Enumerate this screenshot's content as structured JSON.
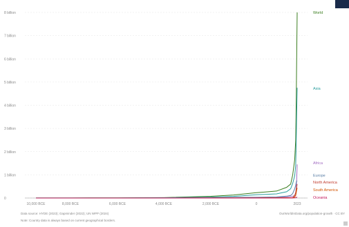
{
  "chart_data": {
    "type": "line",
    "title": "",
    "xlabel": "",
    "ylabel": "",
    "x_ticks": [
      "10,000 BCE",
      "8,000 BCE",
      "6,000 BCE",
      "4,000 BCE",
      "2,000 BCE",
      "0",
      "2023"
    ],
    "y_ticks": [
      "0",
      "1 billion",
      "2 billion",
      "3 billion",
      "4 billion",
      "5 billion",
      "6 billion",
      "7 billion",
      "8 billion"
    ],
    "ylim": [
      0,
      8000000000
    ],
    "xlim": [
      -10000,
      2023
    ],
    "grid": true,
    "x": [
      -10000,
      -8000,
      -6000,
      -4000,
      -2000,
      -1000,
      0,
      1000,
      1500,
      1700,
      1800,
      1900,
      1950,
      1980,
      2000,
      2023
    ],
    "series": [
      {
        "name": "World",
        "color": "#3a7d1e",
        "values": [
          4400000,
          5000000,
          7000000,
          18000000,
          73000000,
          130000000,
          230000000,
          300000000,
          460000000,
          600000000,
          990000000,
          1650000000,
          2500000000,
          4450000000,
          6150000000,
          8000000000
        ]
      },
      {
        "name": "Asia",
        "color": "#2a9d9d",
        "values": [
          2000000,
          2500000,
          3500000,
          9000000,
          40000000,
          70000000,
          140000000,
          180000000,
          270000000,
          400000000,
          630000000,
          950000000,
          1400000000,
          2650000000,
          3700000000,
          4750000000
        ]
      },
      {
        "name": "Africa",
        "color": "#a26dc2",
        "values": [
          500000,
          600000,
          900000,
          2500000,
          10000000,
          15000000,
          25000000,
          35000000,
          55000000,
          70000000,
          80000000,
          110000000,
          230000000,
          480000000,
          820000000,
          1450000000
        ]
      },
      {
        "name": "Europe",
        "color": "#5b7fa6",
        "values": [
          700000,
          800000,
          1000000,
          3000000,
          12000000,
          25000000,
          35000000,
          45000000,
          80000000,
          110000000,
          190000000,
          400000000,
          550000000,
          690000000,
          730000000,
          745000000
        ]
      },
      {
        "name": "North America",
        "color": "#c0392b",
        "values": [
          200000,
          250000,
          300000,
          600000,
          2000000,
          3000000,
          5000000,
          8000000,
          15000000,
          10000000,
          15000000,
          110000000,
          230000000,
          370000000,
          490000000,
          600000000
        ]
      },
      {
        "name": "South America",
        "color": "#d35400",
        "values": [
          100000,
          150000,
          200000,
          500000,
          2000000,
          3000000,
          5000000,
          7000000,
          10000000,
          8000000,
          10000000,
          40000000,
          110000000,
          240000000,
          350000000,
          435000000
        ]
      },
      {
        "name": "Oceania",
        "color": "#c2185b",
        "values": [
          100000,
          100000,
          150000,
          200000,
          300000,
          500000,
          700000,
          1000000,
          1500000,
          2000000,
          2000000,
          6000000,
          13000000,
          23000000,
          31000000,
          45000000
        ]
      }
    ]
  },
  "footer": {
    "source": "Data source: HYDE (2023); Gapminder (2022); UN WPP (2024)",
    "note": "Note: Country data is always based on current geographical borders.",
    "url": "OurWorldInData.org/population-growth · CC BY"
  }
}
